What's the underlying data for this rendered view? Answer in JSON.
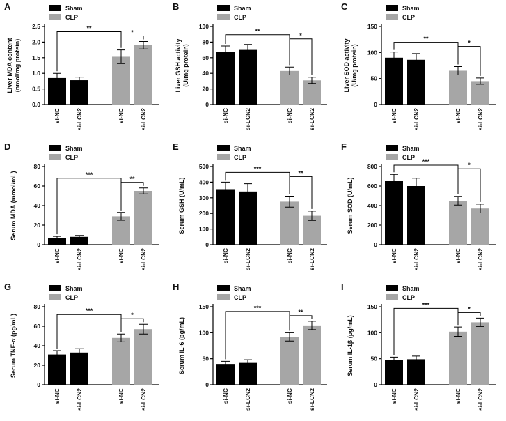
{
  "chart_data": [
    {
      "type": "bar",
      "panel": "A",
      "ylabel": [
        "Liver MDA content",
        "(nmol/mg protein)"
      ],
      "categories": [
        "si-NC",
        "si-LCN2",
        "si-NC",
        "si-LCN2"
      ],
      "series": [
        {
          "name": "Sham",
          "color": "#000000",
          "values": [
            0.85,
            0.78,
            null,
            null
          ],
          "errors": [
            0.15,
            0.1,
            null,
            null
          ]
        },
        {
          "name": "CLP",
          "color": "#a6a6a6",
          "values": [
            null,
            null,
            1.53,
            1.9
          ],
          "errors": [
            null,
            null,
            0.22,
            0.12
          ]
        }
      ],
      "ylim": [
        0,
        2.5
      ],
      "yticks": [
        {
          "value": 0,
          "label": "0.0"
        },
        0.5,
        {
          "value": 1,
          "label": "1.0"
        },
        1.5,
        {
          "value": 2,
          "label": "2.0"
        },
        2.5
      ],
      "comparisons": [
        {
          "label": "**",
          "between": [
            0,
            2
          ]
        },
        {
          "label": "*",
          "between": [
            2,
            3
          ]
        }
      ]
    },
    {
      "type": "bar",
      "panel": "B",
      "ylabel": [
        "Liver GSH activity",
        "(U/mg protein)"
      ],
      "categories": [
        "si-NC",
        "si-LCN2",
        "si-NC",
        "si-LCN2"
      ],
      "series": [
        {
          "name": "Sham",
          "color": "#000000",
          "values": [
            67,
            70,
            null,
            null
          ],
          "errors": [
            8,
            7,
            null,
            null
          ]
        },
        {
          "name": "CLP",
          "color": "#a6a6a6",
          "values": [
            null,
            null,
            43,
            31
          ],
          "errors": [
            null,
            null,
            5,
            4
          ]
        }
      ],
      "ylim": [
        0,
        100
      ],
      "yticks": [
        0,
        20,
        40,
        60,
        80,
        100
      ],
      "comparisons": [
        {
          "label": "**",
          "between": [
            0,
            2
          ]
        },
        {
          "label": "*",
          "between": [
            2,
            3
          ]
        }
      ]
    },
    {
      "type": "bar",
      "panel": "C",
      "ylabel": [
        "Liver SOD activity",
        "(U/mg protein)"
      ],
      "categories": [
        "si-NC",
        "si-LCN2",
        "si-NC",
        "si-LCN2"
      ],
      "series": [
        {
          "name": "Sham",
          "color": "#000000",
          "values": [
            90,
            86,
            null,
            null
          ],
          "errors": [
            11,
            12,
            null,
            null
          ]
        },
        {
          "name": "CLP",
          "color": "#a6a6a6",
          "values": [
            null,
            null,
            65,
            45
          ],
          "errors": [
            null,
            null,
            8,
            6
          ]
        }
      ],
      "ylim": [
        0,
        150
      ],
      "yticks": [
        0,
        50,
        100,
        150
      ],
      "comparisons": [
        {
          "label": "**",
          "between": [
            0,
            2
          ]
        },
        {
          "label": "*",
          "between": [
            2,
            3
          ]
        }
      ]
    },
    {
      "type": "bar",
      "panel": "D",
      "ylabel": [
        "Serum MDA (mmol/mL)"
      ],
      "categories": [
        "si-NC",
        "si-LCN2",
        "si-NC",
        "si-LCN2"
      ],
      "series": [
        {
          "name": "Sham",
          "color": "#000000",
          "values": [
            7,
            8,
            null,
            null
          ],
          "errors": [
            1.5,
            1.5,
            null,
            null
          ]
        },
        {
          "name": "CLP",
          "color": "#a6a6a6",
          "values": [
            null,
            null,
            29,
            55
          ],
          "errors": [
            null,
            null,
            4,
            3
          ]
        }
      ],
      "ylim": [
        0,
        80
      ],
      "yticks": [
        0,
        20,
        40,
        60,
        80
      ],
      "comparisons": [
        {
          "label": "***",
          "between": [
            0,
            2
          ]
        },
        {
          "label": "**",
          "between": [
            2,
            3
          ]
        }
      ]
    },
    {
      "type": "bar",
      "panel": "E",
      "ylabel": [
        "Serum GSH (U/mL)"
      ],
      "categories": [
        "si-NC",
        "si-LCN2",
        "si-NC",
        "si-LCN2"
      ],
      "series": [
        {
          "name": "Sham",
          "color": "#000000",
          "values": [
            355,
            340,
            null,
            null
          ],
          "errors": [
            45,
            50,
            null,
            null
          ]
        },
        {
          "name": "CLP",
          "color": "#a6a6a6",
          "values": [
            null,
            null,
            275,
            185
          ],
          "errors": [
            null,
            null,
            35,
            30
          ]
        }
      ],
      "ylim": [
        0,
        500
      ],
      "yticks": [
        0,
        100,
        200,
        300,
        400,
        500
      ],
      "comparisons": [
        {
          "label": "***",
          "between": [
            0,
            2
          ]
        },
        {
          "label": "**",
          "between": [
            2,
            3
          ]
        }
      ]
    },
    {
      "type": "bar",
      "panel": "F",
      "ylabel": [
        "Serum SOD (U/mL)"
      ],
      "categories": [
        "si-NC",
        "si-LCN2",
        "si-NC",
        "si-LCN2"
      ],
      "series": [
        {
          "name": "Sham",
          "color": "#000000",
          "values": [
            650,
            600,
            null,
            null
          ],
          "errors": [
            70,
            80,
            null,
            null
          ]
        },
        {
          "name": "CLP",
          "color": "#a6a6a6",
          "values": [
            null,
            null,
            450,
            370
          ],
          "errors": [
            null,
            null,
            45,
            45
          ]
        }
      ],
      "ylim": [
        0,
        800
      ],
      "yticks": [
        0,
        200,
        400,
        600,
        800
      ],
      "comparisons": [
        {
          "label": "***",
          "between": [
            0,
            2
          ]
        },
        {
          "label": "*",
          "between": [
            2,
            3
          ]
        }
      ]
    },
    {
      "type": "bar",
      "panel": "G",
      "ylabel": [
        "Serum TNF-α (pg/mL)"
      ],
      "categories": [
        "si-NC",
        "si-LCN2",
        "si-NC",
        "si-LCN2"
      ],
      "series": [
        {
          "name": "Sham",
          "color": "#000000",
          "values": [
            31,
            33,
            null,
            null
          ],
          "errors": [
            4,
            4,
            null,
            null
          ]
        },
        {
          "name": "CLP",
          "color": "#a6a6a6",
          "values": [
            null,
            null,
            48,
            57
          ],
          "errors": [
            null,
            null,
            4,
            5
          ]
        }
      ],
      "ylim": [
        0,
        80
      ],
      "yticks": [
        0,
        20,
        40,
        60,
        80
      ],
      "comparisons": [
        {
          "label": "***",
          "between": [
            0,
            2
          ]
        },
        {
          "label": "*",
          "between": [
            2,
            3
          ]
        }
      ]
    },
    {
      "type": "bar",
      "panel": "H",
      "ylabel": [
        "Serum IL-6 (pg/mL)"
      ],
      "categories": [
        "si-NC",
        "si-LCN2",
        "si-NC",
        "si-LCN2"
      ],
      "series": [
        {
          "name": "Sham",
          "color": "#000000",
          "values": [
            40,
            42,
            null,
            null
          ],
          "errors": [
            5,
            6,
            null,
            null
          ]
        },
        {
          "name": "CLP",
          "color": "#a6a6a6",
          "values": [
            null,
            null,
            92,
            114
          ],
          "errors": [
            null,
            null,
            8,
            8
          ]
        }
      ],
      "ylim": [
        0,
        150
      ],
      "yticks": [
        0,
        50,
        100,
        150
      ],
      "comparisons": [
        {
          "label": "***",
          "between": [
            0,
            2
          ]
        },
        {
          "label": "**",
          "between": [
            2,
            3
          ]
        }
      ]
    },
    {
      "type": "bar",
      "panel": "I",
      "ylabel": [
        "Serum IL-1β (pg/mL)"
      ],
      "categories": [
        "si-NC",
        "si-LCN2",
        "si-NC",
        "si-LCN2"
      ],
      "series": [
        {
          "name": "Sham",
          "color": "#000000",
          "values": [
            47,
            49,
            null,
            null
          ],
          "errors": [
            6,
            6,
            null,
            null
          ]
        },
        {
          "name": "CLP",
          "color": "#a6a6a6",
          "values": [
            null,
            null,
            102,
            120
          ],
          "errors": [
            null,
            null,
            9,
            8
          ]
        }
      ],
      "ylim": [
        0,
        150
      ],
      "yticks": [
        0,
        50,
        100,
        150
      ],
      "comparisons": [
        {
          "label": "***",
          "between": [
            0,
            2
          ]
        },
        {
          "label": "*",
          "between": [
            2,
            3
          ]
        }
      ]
    }
  ]
}
